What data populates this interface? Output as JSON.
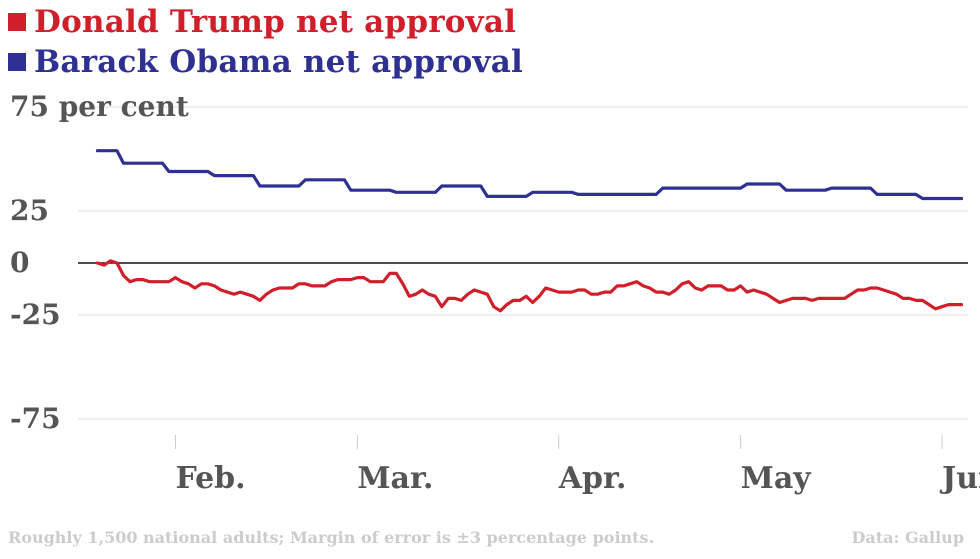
{
  "chart_data": {
    "type": "line",
    "title": "",
    "xlabel": "",
    "ylabel": "",
    "ylim": [
      -75,
      75
    ],
    "y_tick_labels": [
      "75 per cent",
      "25",
      "0",
      "-25",
      "-75"
    ],
    "y_tick_values": [
      75,
      25,
      0,
      -25,
      -75
    ],
    "grid": true,
    "x_tick_labels": [
      "Feb.",
      "Mar.",
      "Apr.",
      "May",
      "Jun."
    ],
    "x_tick_positions": [
      12,
      40,
      71,
      99,
      130
    ],
    "xlim": [
      -3,
      134
    ],
    "legend": {
      "placement": "top-left"
    },
    "series": [
      {
        "name": "Donald Trump net approval",
        "color": "#d01f2a",
        "x": [
          0,
          1,
          2,
          3,
          4,
          5,
          6,
          7,
          8,
          9,
          10,
          11,
          12,
          13,
          14,
          15,
          16,
          17,
          18,
          19,
          20,
          21,
          22,
          23,
          24,
          25,
          26,
          27,
          28,
          29,
          30,
          31,
          32,
          33,
          34,
          35,
          36,
          37,
          38,
          39,
          40,
          41,
          42,
          43,
          44,
          45,
          46,
          47,
          48,
          49,
          50,
          51,
          52,
          53,
          54,
          55,
          56,
          57,
          58,
          59,
          60,
          61,
          62,
          63,
          64,
          65,
          66,
          67,
          68,
          69,
          70,
          71,
          72,
          73,
          74,
          75,
          76,
          77,
          78,
          79,
          80,
          81,
          82,
          83,
          84,
          85,
          86,
          87,
          88,
          89,
          90,
          91,
          92,
          93,
          94,
          95,
          96,
          97,
          98,
          99,
          100,
          101,
          102,
          103,
          104,
          105,
          106,
          107,
          108,
          109,
          110,
          111,
          112,
          113,
          114,
          115,
          116,
          117,
          118,
          119,
          120,
          121,
          122,
          123,
          124,
          125,
          126,
          127,
          128,
          129,
          130,
          131,
          132,
          133
        ],
        "values": [
          0,
          -1,
          1,
          0,
          -6,
          -9,
          -8,
          -8,
          -9,
          -9,
          -9,
          -9,
          -7,
          -9,
          -10,
          -12,
          -10,
          -10,
          -11,
          -13,
          -14,
          -15,
          -14,
          -15,
          -16,
          -18,
          -15,
          -13,
          -12,
          -12,
          -12,
          -10,
          -10,
          -11,
          -11,
          -11,
          -9,
          -8,
          -8,
          -8,
          -7,
          -7,
          -9,
          -9,
          -9,
          -5,
          -5,
          -10,
          -16,
          -15,
          -13,
          -15,
          -16,
          -21,
          -17,
          -17,
          -18,
          -15,
          -13,
          -14,
          -15,
          -21,
          -23,
          -20,
          -18,
          -18,
          -16,
          -19,
          -16,
          -12,
          -13,
          -14,
          -14,
          -14,
          -13,
          -13,
          -15,
          -15,
          -14,
          -14,
          -11,
          -11,
          -10,
          -9,
          -11,
          -12,
          -14,
          -14,
          -15,
          -13,
          -10,
          -9,
          -12,
          -13,
          -11,
          -11,
          -11,
          -13,
          -13,
          -11,
          -14,
          -13,
          -14,
          -15,
          -17,
          -19,
          -18,
          -17,
          -17,
          -17,
          -18,
          -17,
          -17,
          -17,
          -17,
          -17,
          -15,
          -13,
          -13,
          -12,
          -12,
          -13,
          -14,
          -15,
          -17,
          -17,
          -18,
          -18,
          -20,
          -22,
          -21,
          -20,
          -20,
          -20
        ]
      },
      {
        "name": "Barack Obama net approval",
        "color": "#2e3192",
        "x": [
          0,
          3,
          4,
          10,
          11,
          17,
          18,
          24,
          25,
          31,
          32,
          38,
          39,
          45,
          46,
          52,
          53,
          59,
          60,
          66,
          67,
          73,
          74,
          86,
          87,
          99,
          100,
          105,
          106,
          112,
          113,
          119,
          120,
          126,
          127,
          131,
          133
        ],
        "values": [
          54,
          54,
          48,
          48,
          44,
          44,
          42,
          42,
          37,
          37,
          40,
          40,
          35,
          35,
          34,
          34,
          37,
          37,
          32,
          32,
          34,
          34,
          33,
          33,
          36,
          36,
          38,
          38,
          35,
          35,
          36,
          36,
          33,
          33,
          31,
          31,
          31
        ]
      }
    ]
  },
  "legend": {
    "trump_label": "Donald Trump net approval",
    "obama_label": "Barack Obama net approval"
  },
  "footer": {
    "note": "Roughly 1,500 national adults; Margin of error is ±3 percentage points.",
    "source": "Data: Gallup"
  }
}
